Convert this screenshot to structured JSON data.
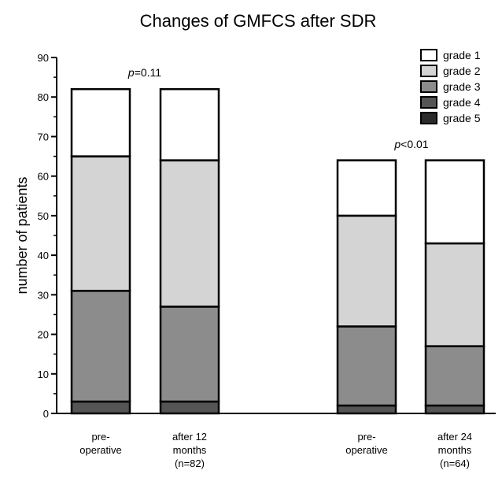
{
  "chart_data": {
    "type": "bar",
    "stacked": true,
    "title": "Changes of GMFCS after SDR",
    "xlabel": "",
    "ylabel": "number of patients",
    "ylim": [
      0,
      90
    ],
    "yticks": [
      "0",
      "10",
      "20",
      "30",
      "40",
      "50",
      "60",
      "70",
      "80",
      "90"
    ],
    "categories": [
      [
        "pre-",
        "operative"
      ],
      [
        "after 12",
        "months",
        "(n=82)"
      ],
      [
        "pre-",
        "operative"
      ],
      [
        "after 24",
        "months",
        "(n=64)"
      ]
    ],
    "series": [
      {
        "name": "grade 5",
        "color": "#2b2b2b",
        "values": [
          0,
          0,
          0,
          0
        ]
      },
      {
        "name": "grade 4",
        "color": "#555555",
        "values": [
          3,
          3,
          2,
          2
        ]
      },
      {
        "name": "grade 3",
        "color": "#8c8c8c",
        "values": [
          28,
          24,
          20,
          15
        ]
      },
      {
        "name": "grade 2",
        "color": "#d4d4d4",
        "values": [
          34,
          37,
          28,
          26
        ]
      },
      {
        "name": "grade 1",
        "color": "#ffffff",
        "values": [
          17,
          18,
          14,
          21
        ]
      }
    ],
    "legend_order": [
      "grade 1",
      "grade 2",
      "grade 3",
      "grade 4",
      "grade 5"
    ],
    "legend_position": "top-right",
    "annotations": [
      {
        "prefix": "p",
        "text": "=0.11"
      },
      {
        "prefix": "p",
        "text": "<0.01"
      }
    ],
    "grid": false
  }
}
